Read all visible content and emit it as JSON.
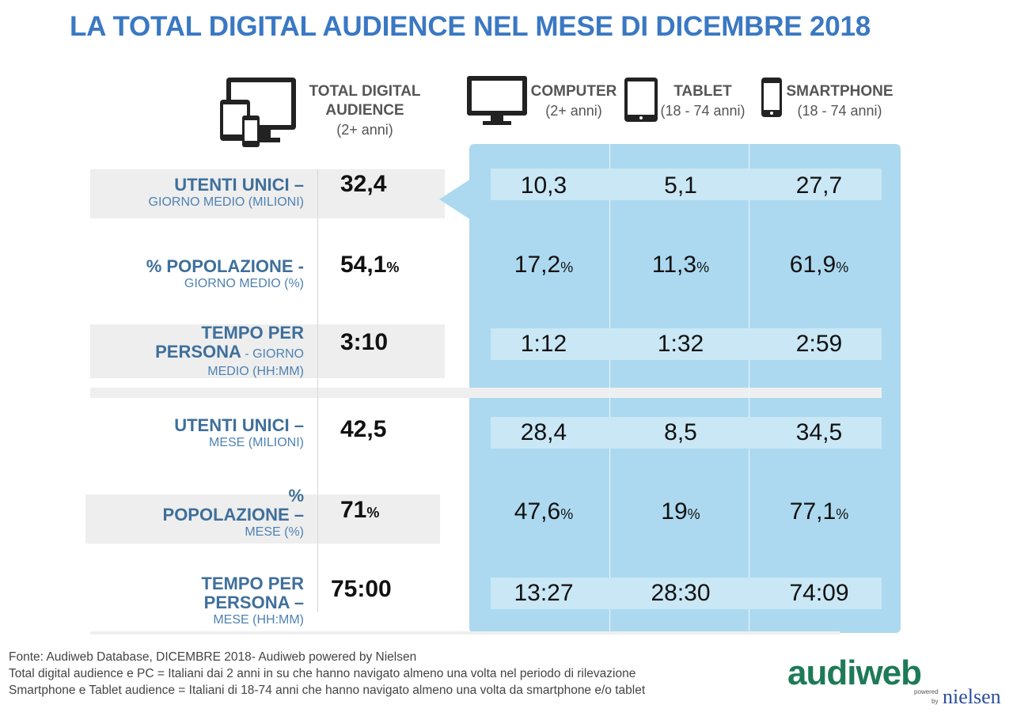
{
  "title": "LA TOTAL DIGITAL AUDIENCE NEL MESE DI DICEMBRE 2018",
  "colors": {
    "title": "#3a78c3",
    "panel": "#acd9ef",
    "panel_bar": "#c9e7f5",
    "label": "#3f6f9b"
  },
  "headers": {
    "total": {
      "line1": "TOTAL DIGITAL",
      "line2": "AUDIENCE",
      "sub": "(2+ anni)",
      "icon": "multi-device-icon"
    },
    "computer": {
      "label": "COMPUTER",
      "sub": "(2+ anni)",
      "icon": "monitor-icon"
    },
    "tablet": {
      "label": "TABLET",
      "sub": "(18 - 74 anni)",
      "icon": "tablet-icon"
    },
    "smartphone": {
      "label": "SMARTPHONE",
      "sub": "(18 - 74 anni)",
      "icon": "smartphone-icon"
    }
  },
  "rows": [
    {
      "label_main": "UTENTI UNICI –",
      "label_sub": "GIORNO MEDIO (MILIONI)"
    },
    {
      "label_main": "% POPOLAZIONE -",
      "label_sub": "GIORNO MEDIO (%)"
    },
    {
      "label_main1": "TEMPO PER",
      "label_main2": "PERSONA",
      "label_inline": " - GIORNO",
      "label_sub": "MEDIO (HH:MM)"
    },
    {
      "label_main": "UTENTI UNICI –",
      "label_sub": "MESE (MILIONI)"
    },
    {
      "label_main1": "%",
      "label_main2": "POPOLAZIONE –",
      "label_sub": "MESE (%)"
    },
    {
      "label_main1": "TEMPO PER",
      "label_main2": "PERSONA –",
      "label_sub": "MESE (HH:MM)"
    }
  ],
  "chart_data": {
    "type": "table",
    "title": "LA TOTAL DIGITAL AUDIENCE NEL MESE DI DICEMBRE 2018",
    "columns": [
      "TOTAL DIGITAL AUDIENCE (2+ anni)",
      "COMPUTER (2+ anni)",
      "TABLET (18 - 74 anni)",
      "SMARTPHONE (18 - 74 anni)"
    ],
    "rows": [
      {
        "metric": "UTENTI UNICI – GIORNO MEDIO (MILIONI)",
        "values": [
          "32,4",
          "10,3",
          "5,1",
          "27,7"
        ],
        "pct": false
      },
      {
        "metric": "% POPOLAZIONE - GIORNO MEDIO (%)",
        "values": [
          "54,1",
          "17,2",
          "11,3",
          "61,9"
        ],
        "pct": true
      },
      {
        "metric": "TEMPO PER PERSONA - GIORNO MEDIO (HH:MM)",
        "values": [
          "3:10",
          "1:12",
          "1:32",
          "2:59"
        ],
        "pct": false
      },
      {
        "metric": "UTENTI UNICI – MESE (MILIONI)",
        "values": [
          "42,5",
          "28,4",
          "8,5",
          "34,5"
        ],
        "pct": false
      },
      {
        "metric": "% POPOLAZIONE – MESE (%)",
        "values": [
          "71",
          "47,6",
          "19",
          "77,1"
        ],
        "pct": true
      },
      {
        "metric": "TEMPO PER PERSONA – MESE (HH:MM)",
        "values": [
          "75:00",
          "13:27",
          "28:30",
          "74:09"
        ],
        "pct": false
      }
    ],
    "pct_symbol": "%"
  },
  "footnotes": [
    "Fonte: Audiweb Database, DICEMBRE 2018- Audiweb powered by Nielsen",
    "Total digital audience e PC = Italiani dai 2 anni in su che hanno navigato almeno una volta nel periodo di rilevazione",
    "Smartphone e Tablet audience = Italiani di 18-74 anni che hanno navigato almeno una volta da smartphone e/o tablet"
  ],
  "logo": {
    "main": "audiweb",
    "powered": "powered",
    "by": "by",
    "partner": "nielsen"
  }
}
